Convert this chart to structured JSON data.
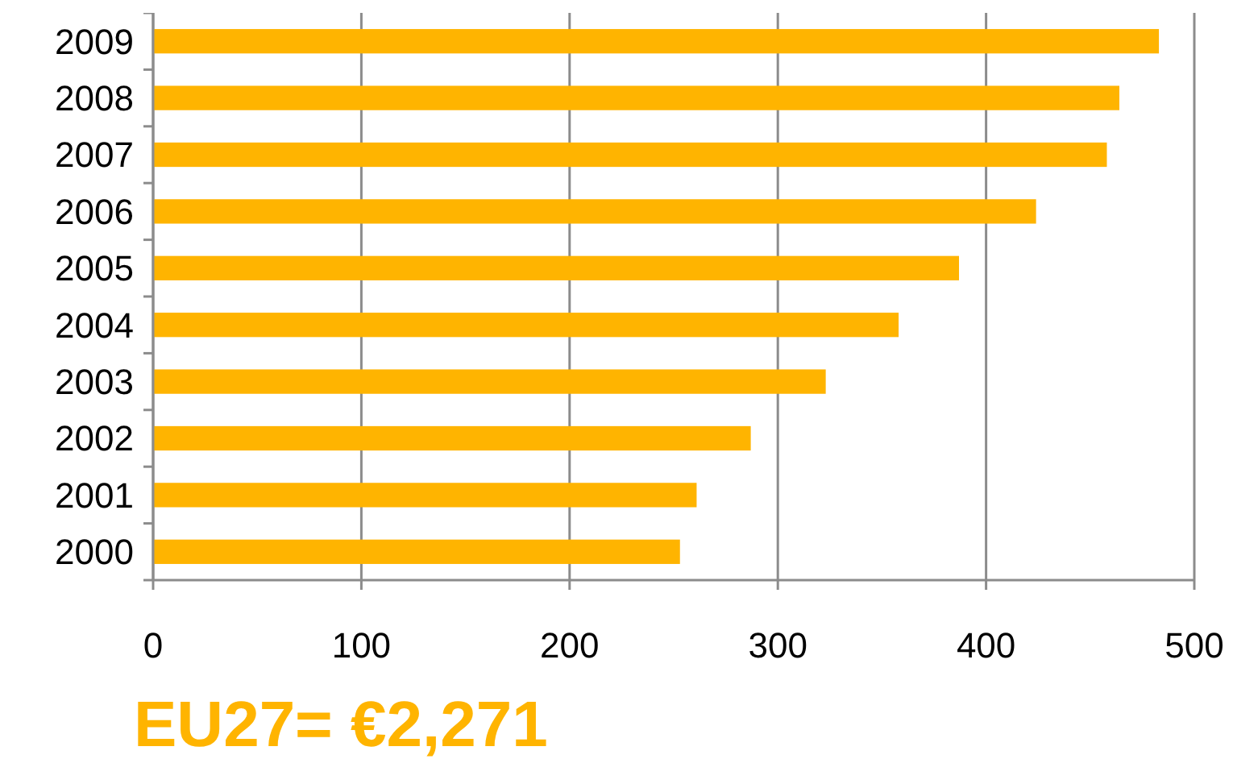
{
  "chart_data": {
    "type": "bar",
    "orientation": "horizontal",
    "categories": [
      "2009",
      "2008",
      "2007",
      "2006",
      "2005",
      "2004",
      "2003",
      "2002",
      "2001",
      "2000"
    ],
    "values": [
      483,
      464,
      458,
      424,
      387,
      358,
      323,
      287,
      261,
      253
    ],
    "color": "#ffb400",
    "xlim": [
      0,
      500
    ],
    "xticks": [
      0,
      100,
      200,
      300,
      400,
      500
    ],
    "grid": "x",
    "annotations": [
      "EU27= €2,271"
    ]
  }
}
